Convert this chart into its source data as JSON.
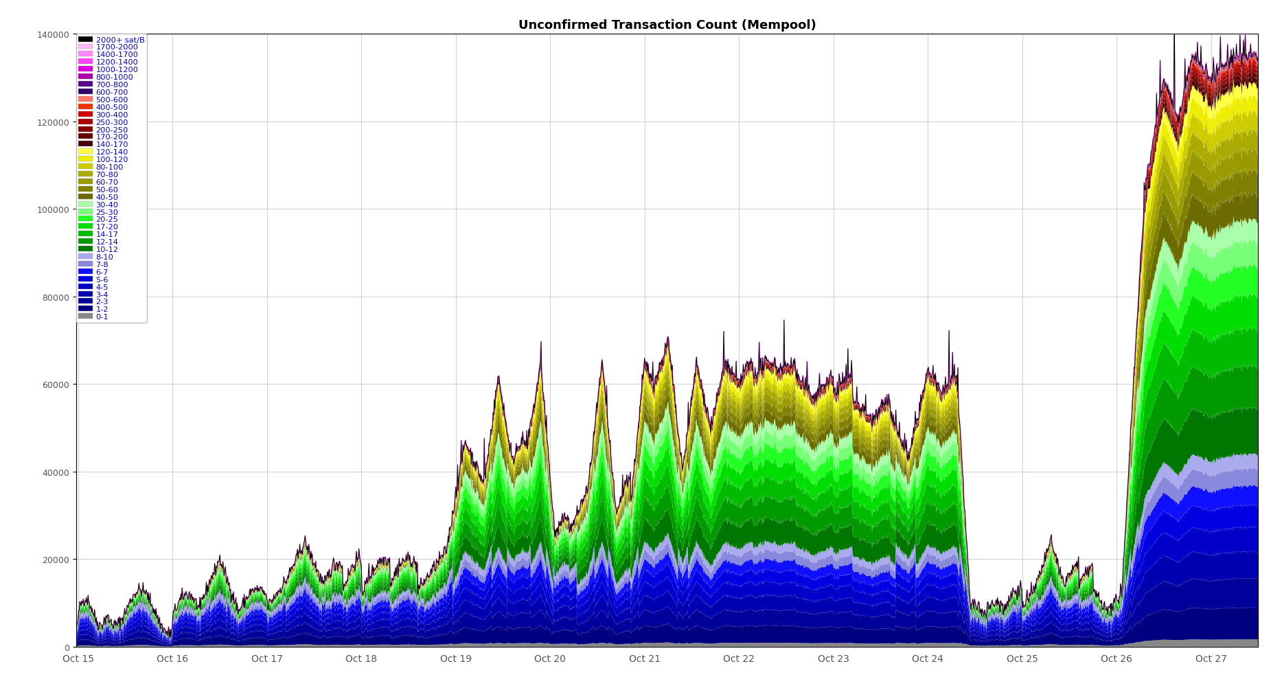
{
  "title": "Unconfirmed Transaction Count (Mempool)",
  "title_fontsize": 13,
  "ylim": [
    0,
    140000
  ],
  "yticks": [
    0,
    20000,
    40000,
    60000,
    80000,
    100000,
    120000,
    140000
  ],
  "background_color": "#ffffff",
  "legend_text_color": "#0000cc",
  "legend_fontsize": 8.2,
  "grid_color": "#cccccc",
  "layers": [
    {
      "label": "0-1",
      "color": "#888888"
    },
    {
      "label": "1-2",
      "color": "#000080"
    },
    {
      "label": "2-3",
      "color": "#00009A"
    },
    {
      "label": "3-4",
      "color": "#0000B0"
    },
    {
      "label": "4-5",
      "color": "#0000C8"
    },
    {
      "label": "5-6",
      "color": "#0000E0"
    },
    {
      "label": "6-7",
      "color": "#1010FF"
    },
    {
      "label": "7-8",
      "color": "#8888DD"
    },
    {
      "label": "8-10",
      "color": "#AAAAEE"
    },
    {
      "label": "10-12",
      "color": "#007700"
    },
    {
      "label": "12-14",
      "color": "#009900"
    },
    {
      "label": "14-17",
      "color": "#00BB00"
    },
    {
      "label": "17-20",
      "color": "#00DD00"
    },
    {
      "label": "20-25",
      "color": "#22FF22"
    },
    {
      "label": "25-30",
      "color": "#77FF77"
    },
    {
      "label": "30-40",
      "color": "#AAFFAA"
    },
    {
      "label": "40-50",
      "color": "#6B6B00"
    },
    {
      "label": "50-60",
      "color": "#808000"
    },
    {
      "label": "60-70",
      "color": "#999900"
    },
    {
      "label": "70-80",
      "color": "#AAAA00"
    },
    {
      "label": "80-100",
      "color": "#CCCC00"
    },
    {
      "label": "100-120",
      "color": "#EEEE00"
    },
    {
      "label": "120-140",
      "color": "#FFFF44"
    },
    {
      "label": "140-170",
      "color": "#440000"
    },
    {
      "label": "170-200",
      "color": "#660000"
    },
    {
      "label": "200-250",
      "color": "#880000"
    },
    {
      "label": "250-300",
      "color": "#AA0000"
    },
    {
      "label": "300-400",
      "color": "#CC0000"
    },
    {
      "label": "400-500",
      "color": "#EE3300"
    },
    {
      "label": "500-600",
      "color": "#FF7766"
    },
    {
      "label": "600-700",
      "color": "#330066"
    },
    {
      "label": "700-800",
      "color": "#550088"
    },
    {
      "label": "800-1000",
      "color": "#AA00AA"
    },
    {
      "label": "1000-1200",
      "color": "#DD00DD"
    },
    {
      "label": "1200-1400",
      "color": "#FF44FF"
    },
    {
      "label": "1400-1700",
      "color": "#FF88FF"
    },
    {
      "label": "1700-2000",
      "color": "#FFBBFF"
    },
    {
      "label": "2000+ sat/B",
      "color": "#000000"
    }
  ],
  "n_points": 2000,
  "date_start": 14.98,
  "date_end": 27.5,
  "x_ticks": [
    15,
    16,
    17,
    18,
    19,
    20,
    21,
    22,
    23,
    24,
    25,
    26,
    27
  ],
  "x_tick_labels": [
    "Oct 15",
    "Oct 16",
    "Oct 17",
    "Oct 18",
    "Oct 19",
    "Oct 20",
    "Oct 21",
    "Oct 22",
    "Oct 23",
    "Oct 24",
    "Oct 25",
    "Oct 26",
    "Oct 27"
  ]
}
